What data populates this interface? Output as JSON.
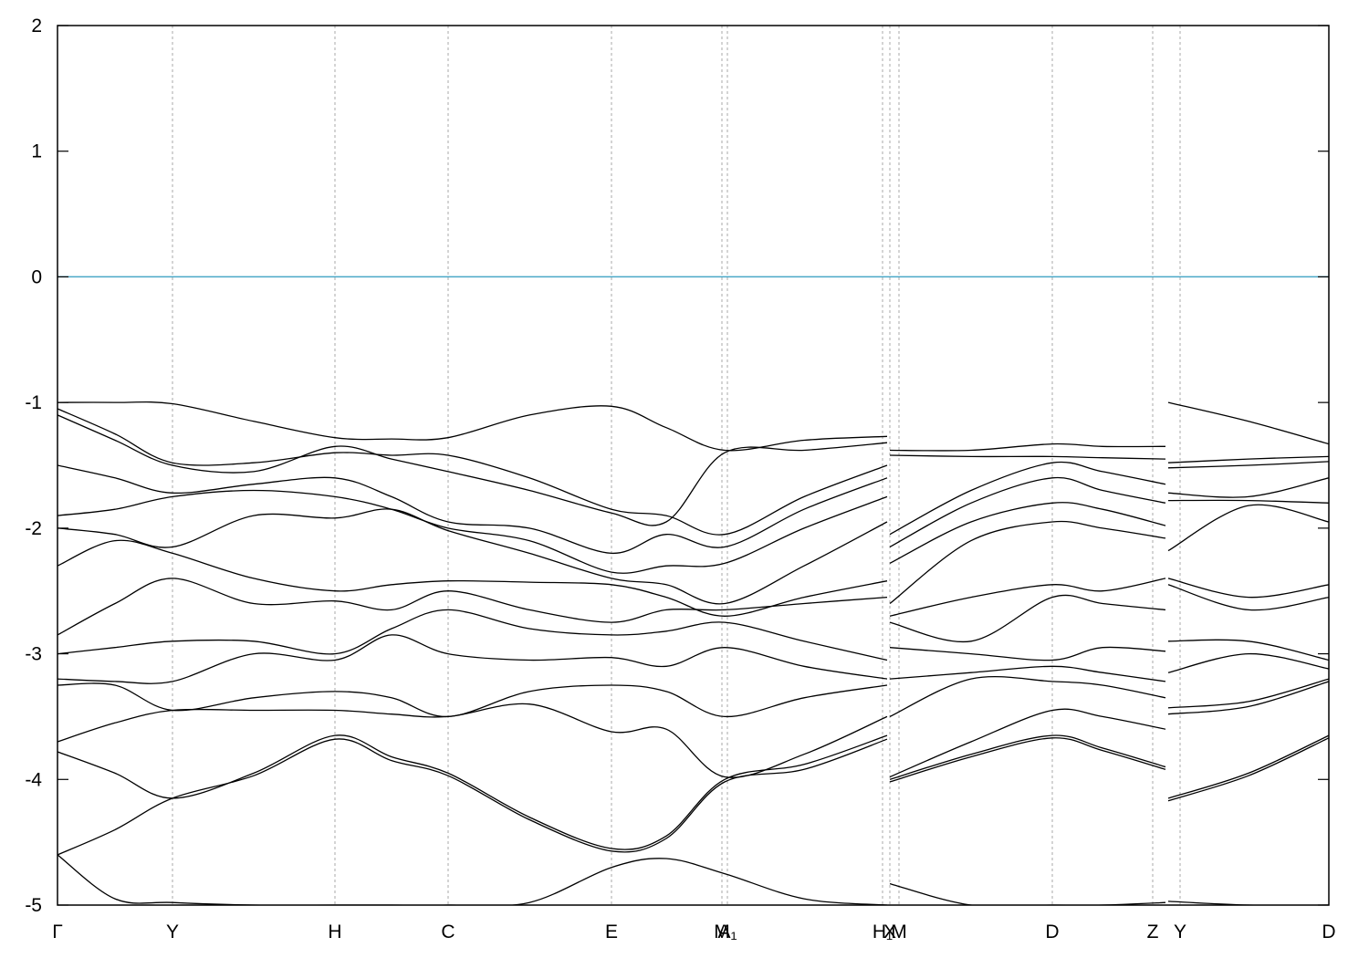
{
  "chart_data": {
    "type": "line",
    "color": "#000000",
    "grid": true,
    "xlim": [
      0,
      1393
    ],
    "ylim": [
      -5,
      2
    ],
    "yticks": [
      -5,
      -4,
      -3,
      -2,
      -1,
      0,
      1,
      2
    ],
    "xticks": [
      {
        "value": 0,
        "label": "Γ"
      },
      {
        "value": 126,
        "label": "Y"
      },
      {
        "value": 304,
        "label": "H"
      },
      {
        "value": 428,
        "label": "C"
      },
      {
        "value": 607,
        "label": "E"
      },
      {
        "value": 728,
        "label": "M"
      },
      {
        "value": 734,
        "label": "A₁"
      },
      {
        "value": 904,
        "label": "H₁"
      },
      {
        "value": 912,
        "label": "X"
      },
      {
        "value": 922,
        "label": "M"
      },
      {
        "value": 1090,
        "label": "D"
      },
      {
        "value": 1200,
        "label": "Z"
      },
      {
        "value": 1230,
        "label": "Y"
      },
      {
        "value": 1393,
        "label": "D"
      }
    ],
    "reference_line": {
      "value": 0,
      "color": "#4aa8c8"
    },
    "x": [
      0,
      63,
      126,
      215,
      304,
      366,
      428,
      517,
      607,
      667,
      731,
      818,
      909,
      910,
      912,
      1001,
      1090,
      1145,
      1214,
      1215,
      1217,
      1305,
      1393
    ],
    "series": [
      {
        "values": [
          -1.0,
          -1.0,
          -1.01,
          -1.15,
          -1.28,
          -1.29,
          -1.28,
          -1.1,
          -1.03,
          -1.2,
          -1.38,
          -1.3,
          -1.27,
          null,
          -1.38,
          -1.38,
          -1.33,
          -1.35,
          -1.35,
          null,
          -1.0,
          -1.15,
          -1.33
        ]
      },
      {
        "values": [
          -1.05,
          -1.25,
          -1.48,
          -1.48,
          -1.4,
          -1.42,
          -1.42,
          -1.6,
          -1.85,
          -1.9,
          -2.05,
          -1.75,
          -1.5,
          null,
          -1.42,
          -1.43,
          -1.43,
          -1.44,
          -1.45,
          null,
          -1.48,
          -1.45,
          -1.43
        ]
      },
      {
        "values": [
          -1.1,
          -1.3,
          -1.5,
          -1.55,
          -1.35,
          -1.45,
          -1.55,
          -1.7,
          -1.88,
          -1.95,
          -1.4,
          -1.38,
          -1.32,
          null,
          -2.05,
          -1.7,
          -1.48,
          -1.55,
          -1.65,
          null,
          -1.52,
          -1.5,
          -1.47
        ]
      },
      {
        "values": [
          -1.5,
          -1.6,
          -1.72,
          -1.65,
          -1.6,
          -1.75,
          -1.95,
          -2.0,
          -2.2,
          -2.05,
          -2.15,
          -1.85,
          -1.6,
          null,
          -2.15,
          -1.8,
          -1.6,
          -1.7,
          -1.8,
          null,
          -1.72,
          -1.75,
          -1.6
        ]
      },
      {
        "values": [
          -1.9,
          -1.85,
          -1.75,
          -1.7,
          -1.75,
          -1.85,
          -2.0,
          -2.1,
          -2.35,
          -2.3,
          -2.28,
          -2.0,
          -1.75,
          null,
          -2.28,
          -1.95,
          -1.8,
          -1.85,
          -1.98,
          null,
          -1.78,
          -1.78,
          -1.8
        ]
      },
      {
        "values": [
          -2.0,
          -2.05,
          -2.15,
          -1.9,
          -1.92,
          -1.85,
          -2.02,
          -2.2,
          -2.4,
          -2.45,
          -2.6,
          -2.3,
          -1.95,
          null,
          -2.6,
          -2.1,
          -1.95,
          -2.0,
          -2.08,
          null,
          -2.18,
          -1.82,
          -1.95
        ]
      },
      {
        "values": [
          -2.3,
          -2.1,
          -2.2,
          -2.4,
          -2.5,
          -2.45,
          -2.42,
          -2.43,
          -2.45,
          -2.55,
          -2.7,
          -2.55,
          -2.42,
          null,
          -2.7,
          -2.55,
          -2.45,
          -2.5,
          -2.4,
          null,
          -2.4,
          -2.55,
          -2.45
        ]
      },
      {
        "values": [
          -2.85,
          -2.6,
          -2.4,
          -2.6,
          -2.58,
          -2.65,
          -2.5,
          -2.65,
          -2.75,
          -2.65,
          -2.65,
          -2.6,
          -2.55,
          null,
          -2.75,
          -2.9,
          -2.55,
          -2.6,
          -2.65,
          null,
          -2.45,
          -2.65,
          -2.55
        ]
      },
      {
        "values": [
          -3.0,
          -2.95,
          -2.9,
          -2.9,
          -3.0,
          -2.8,
          -2.65,
          -2.8,
          -2.85,
          -2.82,
          -2.75,
          -2.9,
          -3.05,
          null,
          -2.95,
          -3.0,
          -3.05,
          -2.95,
          -2.98,
          null,
          -2.9,
          -2.9,
          -3.05
        ]
      },
      {
        "values": [
          -3.2,
          -3.22,
          -3.22,
          -3.0,
          -3.05,
          -2.85,
          -3.0,
          -3.05,
          -3.03,
          -3.1,
          -2.95,
          -3.1,
          -3.2,
          null,
          -3.2,
          -3.15,
          -3.1,
          -3.15,
          -3.22,
          null,
          -3.15,
          -3.0,
          -3.12
        ]
      },
      {
        "values": [
          -3.25,
          -3.25,
          -3.45,
          -3.35,
          -3.3,
          -3.35,
          -3.5,
          -3.3,
          -3.25,
          -3.3,
          -3.5,
          -3.35,
          -3.25,
          null,
          -3.5,
          -3.2,
          -3.22,
          -3.25,
          -3.35,
          null,
          -3.43,
          -3.38,
          -3.2
        ]
      },
      {
        "values": [
          -3.7,
          -3.55,
          -3.45,
          -3.45,
          -3.45,
          -3.48,
          -3.5,
          -3.4,
          -3.62,
          -3.6,
          -3.98,
          -3.8,
          -3.5,
          null,
          -3.98,
          -3.7,
          -3.45,
          -3.5,
          -3.6,
          null,
          -3.48,
          -3.42,
          -3.22
        ]
      },
      {
        "values": [
          -3.78,
          -3.95,
          -4.15,
          -3.95,
          -3.65,
          -3.82,
          -3.95,
          -4.3,
          -4.55,
          -4.45,
          -4.0,
          -3.88,
          -3.65,
          null,
          -4.0,
          -3.8,
          -3.65,
          -3.75,
          -3.9,
          null,
          -4.15,
          -3.95,
          -3.65
        ]
      },
      {
        "values": [
          -4.6,
          -4.4,
          -4.15,
          -3.97,
          -3.68,
          -3.85,
          -3.97,
          -4.32,
          -4.57,
          -4.47,
          -4.02,
          -3.92,
          -3.68,
          null,
          -4.02,
          -3.82,
          -3.67,
          -3.77,
          -3.92,
          null,
          -4.17,
          -3.97,
          -3.67
        ]
      },
      {
        "values": [
          -4.6,
          -4.95,
          -4.98,
          -5.0,
          -5.0,
          -5.0,
          -5.0,
          -4.98,
          -4.7,
          -4.63,
          -4.75,
          -4.95,
          -5.0,
          null,
          -4.83,
          -5.0,
          -5.0,
          -5.0,
          -4.98,
          null,
          -4.97,
          -5.0,
          -5.0
        ]
      }
    ]
  }
}
